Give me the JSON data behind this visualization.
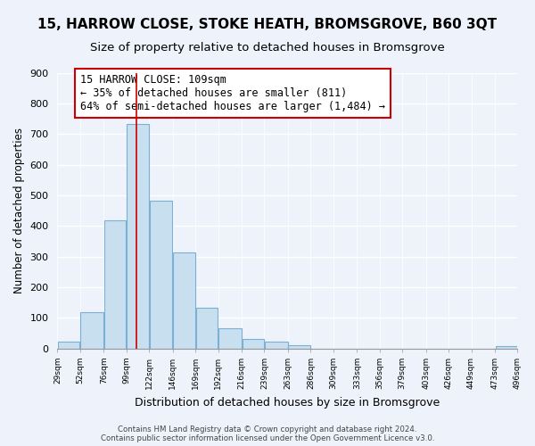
{
  "title": "15, HARROW CLOSE, STOKE HEATH, BROMSGROVE, B60 3QT",
  "subtitle": "Size of property relative to detached houses in Bromsgrove",
  "xlabel": "Distribution of detached houses by size in Bromsgrove",
  "ylabel": "Number of detached properties",
  "bar_edges": [
    29,
    52,
    76,
    99,
    122,
    146,
    169,
    192,
    216,
    239,
    263,
    286,
    309,
    333,
    356,
    379,
    403,
    426,
    449,
    473,
    496
  ],
  "bar_heights": [
    22,
    120,
    418,
    733,
    483,
    315,
    133,
    65,
    30,
    22,
    12,
    0,
    0,
    0,
    0,
    0,
    0,
    0,
    0,
    8,
    0
  ],
  "bar_color": "#c8dff0",
  "bar_edge_color": "#7ab0d4",
  "tick_labels": [
    "29sqm",
    "52sqm",
    "76sqm",
    "99sqm",
    "122sqm",
    "146sqm",
    "169sqm",
    "192sqm",
    "216sqm",
    "239sqm",
    "263sqm",
    "286sqm",
    "309sqm",
    "333sqm",
    "356sqm",
    "379sqm",
    "403sqm",
    "426sqm",
    "449sqm",
    "473sqm",
    "496sqm"
  ],
  "vline_x": 109,
  "vline_color": "#cc0000",
  "annotation_title": "15 HARROW CLOSE: 109sqm",
  "annotation_line1": "← 35% of detached houses are smaller (811)",
  "annotation_line2": "64% of semi-detached houses are larger (1,484) →",
  "ylim": [
    0,
    900
  ],
  "yticks": [
    0,
    100,
    200,
    300,
    400,
    500,
    600,
    700,
    800,
    900
  ],
  "footer1": "Contains HM Land Registry data © Crown copyright and database right 2024.",
  "footer2": "Contains public sector information licensed under the Open Government Licence v3.0.",
  "bg_color": "#eef2fb",
  "grid_color": "#ffffff",
  "title_fontsize": 11,
  "subtitle_fontsize": 9.5
}
